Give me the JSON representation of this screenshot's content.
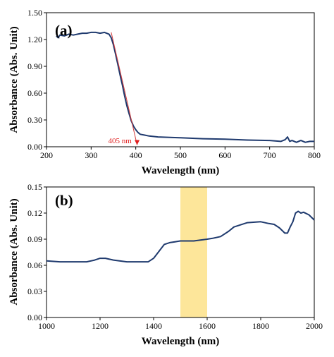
{
  "chart_data": [
    {
      "type": "line",
      "panel_label": "(a)",
      "xlabel": "Wavelength (nm)",
      "ylabel": "Absorbance (Abs. Unit)",
      "xlim": [
        200,
        800
      ],
      "ylim": [
        0,
        1.5
      ],
      "xticks": [
        "200",
        "300",
        "400",
        "500",
        "600",
        "700",
        "800"
      ],
      "yticks": [
        "0.00",
        "0.30",
        "0.60",
        "0.90",
        "1.20",
        "1.50"
      ],
      "grid": false,
      "line_color": "#1f3a6e",
      "series": [
        {
          "x": [
            222,
            226,
            230,
            240,
            250,
            260,
            270,
            280,
            290,
            300,
            310,
            320,
            330,
            340,
            345,
            350,
            355,
            360,
            365,
            370,
            375,
            380,
            385,
            390,
            395,
            400,
            405,
            410,
            420,
            430,
            450,
            500,
            550,
            600,
            650,
            700,
            725,
            735,
            740,
            745,
            750,
            760,
            770,
            780,
            790,
            800
          ],
          "y": [
            1.24,
            1.22,
            1.25,
            1.24,
            1.26,
            1.25,
            1.26,
            1.27,
            1.27,
            1.28,
            1.28,
            1.27,
            1.28,
            1.26,
            1.22,
            1.14,
            1.03,
            0.92,
            0.8,
            0.69,
            0.57,
            0.46,
            0.37,
            0.29,
            0.23,
            0.19,
            0.16,
            0.14,
            0.13,
            0.12,
            0.11,
            0.1,
            0.09,
            0.085,
            0.075,
            0.07,
            0.06,
            0.08,
            0.11,
            0.06,
            0.07,
            0.05,
            0.07,
            0.05,
            0.06,
            0.06
          ]
        }
      ],
      "tangent": {
        "x": [
          345,
          403
        ],
        "y": [
          1.28,
          0.02
        ],
        "color": "#d23b3b"
      },
      "annotation": {
        "text": "405 nm",
        "x": 405,
        "y": 0.0,
        "color": "#e02020"
      }
    },
    {
      "type": "line",
      "panel_label": "(b)",
      "xlabel": "Wavelength (nm)",
      "ylabel": "Absorbance (Abs. Unit)",
      "xlim": [
        1000,
        2000
      ],
      "ylim": [
        0,
        0.15
      ],
      "xticks": [
        "1000",
        "1200",
        "1400",
        "1600",
        "1800",
        "2000"
      ],
      "yticks": [
        "0.00",
        "0.03",
        "0.06",
        "0.09",
        "0.12",
        "0.15"
      ],
      "grid": false,
      "line_color": "#1f3a6e",
      "highlight": {
        "x": [
          1500,
          1600
        ],
        "color": "#fde69a"
      },
      "series": [
        {
          "x": [
            1000,
            1050,
            1100,
            1150,
            1180,
            1200,
            1220,
            1250,
            1300,
            1350,
            1380,
            1400,
            1420,
            1440,
            1460,
            1480,
            1500,
            1550,
            1600,
            1620,
            1650,
            1680,
            1700,
            1750,
            1800,
            1830,
            1850,
            1870,
            1890,
            1900,
            1910,
            1920,
            1930,
            1940,
            1950,
            1960,
            1980,
            2000
          ],
          "y": [
            0.065,
            0.064,
            0.064,
            0.064,
            0.066,
            0.068,
            0.068,
            0.066,
            0.064,
            0.064,
            0.064,
            0.068,
            0.076,
            0.084,
            0.086,
            0.087,
            0.088,
            0.088,
            0.09,
            0.091,
            0.093,
            0.099,
            0.104,
            0.109,
            0.11,
            0.108,
            0.107,
            0.103,
            0.097,
            0.097,
            0.104,
            0.11,
            0.12,
            0.122,
            0.12,
            0.121,
            0.118,
            0.112
          ]
        }
      ]
    }
  ]
}
